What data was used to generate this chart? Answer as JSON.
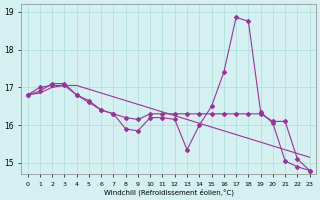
{
  "xlabel": "Windchill (Refroidissement éolien,°C)",
  "hours": [
    0,
    1,
    2,
    3,
    4,
    5,
    6,
    7,
    8,
    9,
    10,
    11,
    12,
    13,
    14,
    15,
    16,
    17,
    18,
    19,
    20,
    21,
    22,
    23
  ],
  "line1": [
    16.8,
    16.9,
    17.1,
    17.1,
    16.8,
    16.6,
    16.4,
    16.3,
    15.9,
    15.85,
    16.2,
    16.2,
    16.15,
    15.35,
    16.0,
    16.5,
    17.4,
    18.85,
    18.75,
    16.35,
    16.05,
    15.05,
    14.9,
    14.8
  ],
  "line2": [
    16.8,
    17.0,
    17.05,
    17.05,
    16.8,
    16.65,
    16.4,
    16.3,
    16.2,
    16.15,
    16.3,
    16.3,
    16.3,
    16.3,
    16.3,
    16.3,
    16.3,
    16.3,
    16.3,
    16.3,
    16.1,
    16.1,
    15.1,
    14.8
  ],
  "line3": [
    16.8,
    16.85,
    17.0,
    17.05,
    17.05,
    16.95,
    16.85,
    16.75,
    16.65,
    16.55,
    16.45,
    16.35,
    16.25,
    16.15,
    16.05,
    15.95,
    15.85,
    15.75,
    15.65,
    15.55,
    15.45,
    15.35,
    15.25,
    15.15
  ],
  "bg_color": "#d4f0f0",
  "line_color": "#993399",
  "grid_color": "#aadddd",
  "ylim": [
    14.7,
    19.2
  ],
  "yticks": [
    15,
    16,
    17,
    18,
    19
  ]
}
